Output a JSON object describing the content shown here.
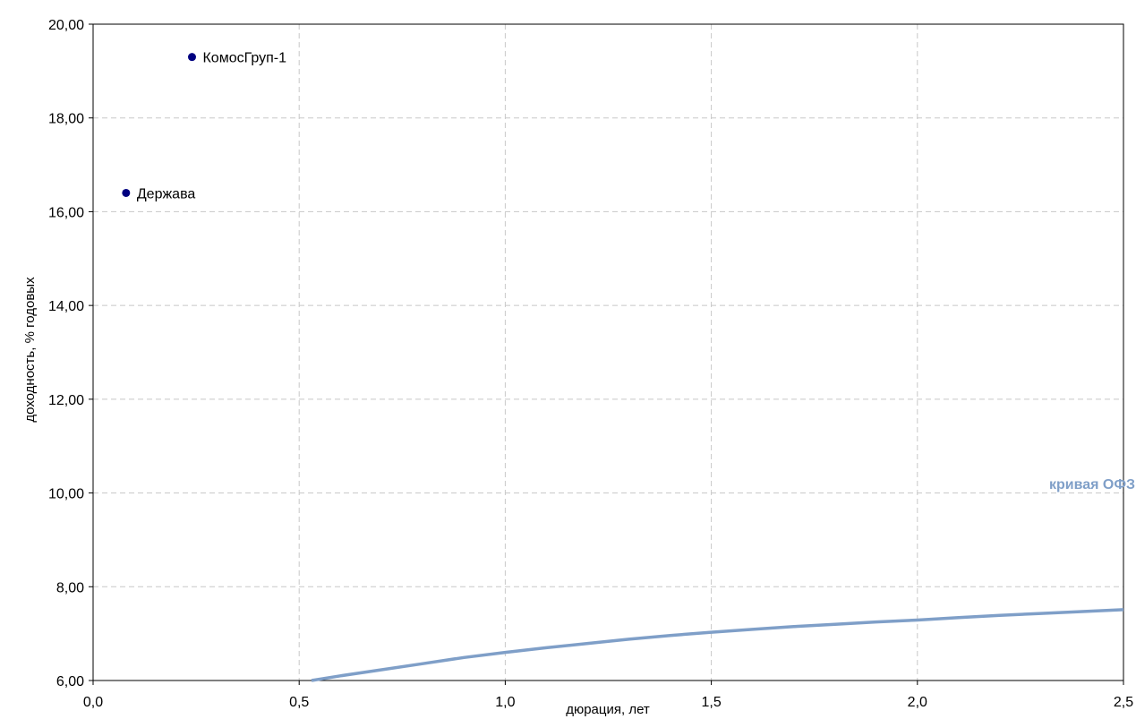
{
  "chart_data": {
    "type": "scatter",
    "title": "",
    "xlabel": "дюрация, лет",
    "ylabel": "доходность, % годовых",
    "xlim": [
      0,
      2.5
    ],
    "ylim": [
      6,
      20
    ],
    "x_ticks": [
      "0,0",
      "0,5",
      "1,0",
      "1,5",
      "2,0",
      "2,5"
    ],
    "x_tick_values": [
      0,
      0.5,
      1.0,
      1.5,
      2.0,
      2.5
    ],
    "y_ticks": [
      "6,00",
      "8,00",
      "10,00",
      "12,00",
      "14,00",
      "16,00",
      "18,00",
      "20,00"
    ],
    "y_tick_values": [
      6,
      8,
      10,
      12,
      14,
      16,
      18,
      20
    ],
    "grid": true,
    "grid_style": "dashed",
    "series": [
      {
        "name": "кривая ОФЗ",
        "type": "line",
        "color": "#7f9fc8",
        "x": [
          0.53,
          0.6,
          0.7,
          0.8,
          0.9,
          1.0,
          1.1,
          1.2,
          1.3,
          1.4,
          1.5,
          1.6,
          1.7,
          1.8,
          1.9,
          2.0,
          2.1,
          2.2,
          2.3,
          2.4,
          2.5
        ],
        "y": [
          6.0,
          6.1,
          6.23,
          6.36,
          6.49,
          6.6,
          6.7,
          6.79,
          6.88,
          6.96,
          7.03,
          7.09,
          7.15,
          7.2,
          7.25,
          7.29,
          7.34,
          7.39,
          7.43,
          7.47,
          7.51
        ]
      },
      {
        "name": "",
        "type": "scatter",
        "color": "#000080",
        "points": [
          {
            "label": "КомосГруп-1",
            "x": 0.24,
            "y": 19.3
          },
          {
            "label": "Держава",
            "x": 0.08,
            "y": 16.4
          }
        ]
      }
    ]
  }
}
